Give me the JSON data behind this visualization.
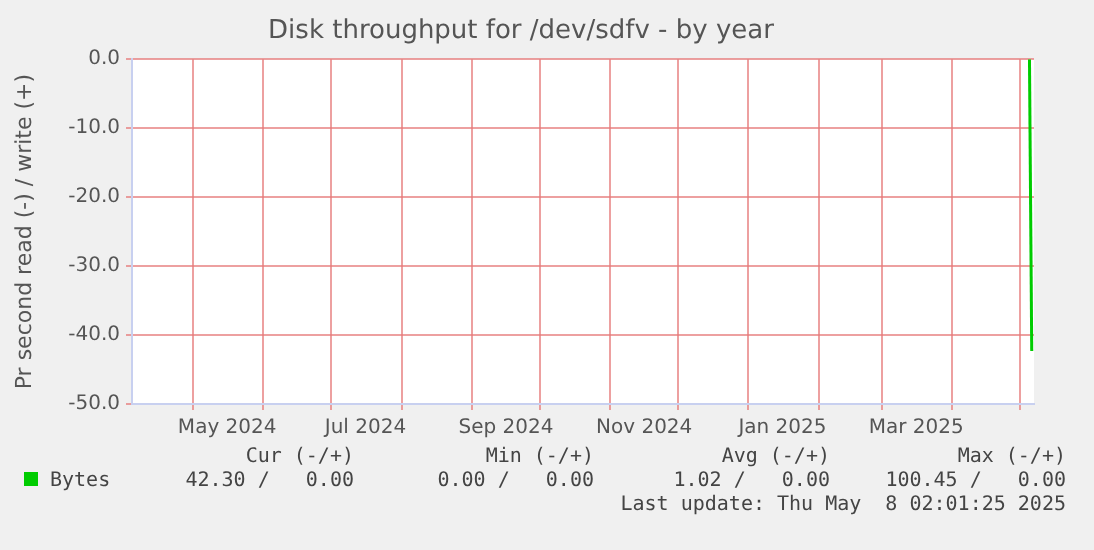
{
  "chart_data": {
    "type": "line",
    "title": "Disk throughput for /dev/sdfv - by year",
    "ylabel": "Pr second read (-) / write (+)",
    "series": [
      {
        "name": "Bytes",
        "color": "#00cc00",
        "x": [
          "2025-05-05",
          "2025-05-06"
        ],
        "values": [
          0,
          -42.3
        ]
      }
    ],
    "xlim": [
      "2024-04-04",
      "2025-05-07"
    ],
    "xticks": [
      {
        "value": "2024-05-01",
        "label": null
      },
      {
        "value": "2024-05-16",
        "label": "May 2024"
      },
      {
        "value": "2024-06-01",
        "label": null
      },
      {
        "value": "2024-07-01",
        "label": null
      },
      {
        "value": "2024-07-16",
        "label": "Jul 2024"
      },
      {
        "value": "2024-08-01",
        "label": null
      },
      {
        "value": "2024-09-01",
        "label": null
      },
      {
        "value": "2024-09-16",
        "label": "Sep 2024"
      },
      {
        "value": "2024-10-01",
        "label": null
      },
      {
        "value": "2024-11-01",
        "label": null
      },
      {
        "value": "2024-11-16",
        "label": "Nov 2024"
      },
      {
        "value": "2024-12-01",
        "label": null
      },
      {
        "value": "2025-01-01",
        "label": null
      },
      {
        "value": "2025-01-16",
        "label": "Jan 2025"
      },
      {
        "value": "2025-02-01",
        "label": null
      },
      {
        "value": "2025-03-01",
        "label": null
      },
      {
        "value": "2025-03-16",
        "label": "Mar 2025"
      },
      {
        "value": "2025-04-01",
        "label": null
      },
      {
        "value": "2025-05-01",
        "label": null
      }
    ],
    "ylim": [
      -50,
      0
    ],
    "yticks": [
      {
        "value": -50,
        "label": "-50.0"
      },
      {
        "value": -40,
        "label": "-40.0"
      },
      {
        "value": -30,
        "label": "-30.0"
      },
      {
        "value": -20,
        "label": "-20.0"
      },
      {
        "value": -10,
        "label": "-10.0"
      },
      {
        "value": 0,
        "label": "0.0"
      }
    ],
    "grid": true,
    "legend": "bottom left",
    "marker": "none",
    "line_style": "solid",
    "annotations": [
      "Cur (-/+)",
      "Min (-/+)",
      "Avg (-/+)",
      "Max (-/+)",
      "42.30 /   0.00",
      "0.00 /   0.00",
      "1.02 /   0.00",
      "100.45 /   0.00",
      "Last update: Thu May  8 02:01:25 2025"
    ]
  }
}
